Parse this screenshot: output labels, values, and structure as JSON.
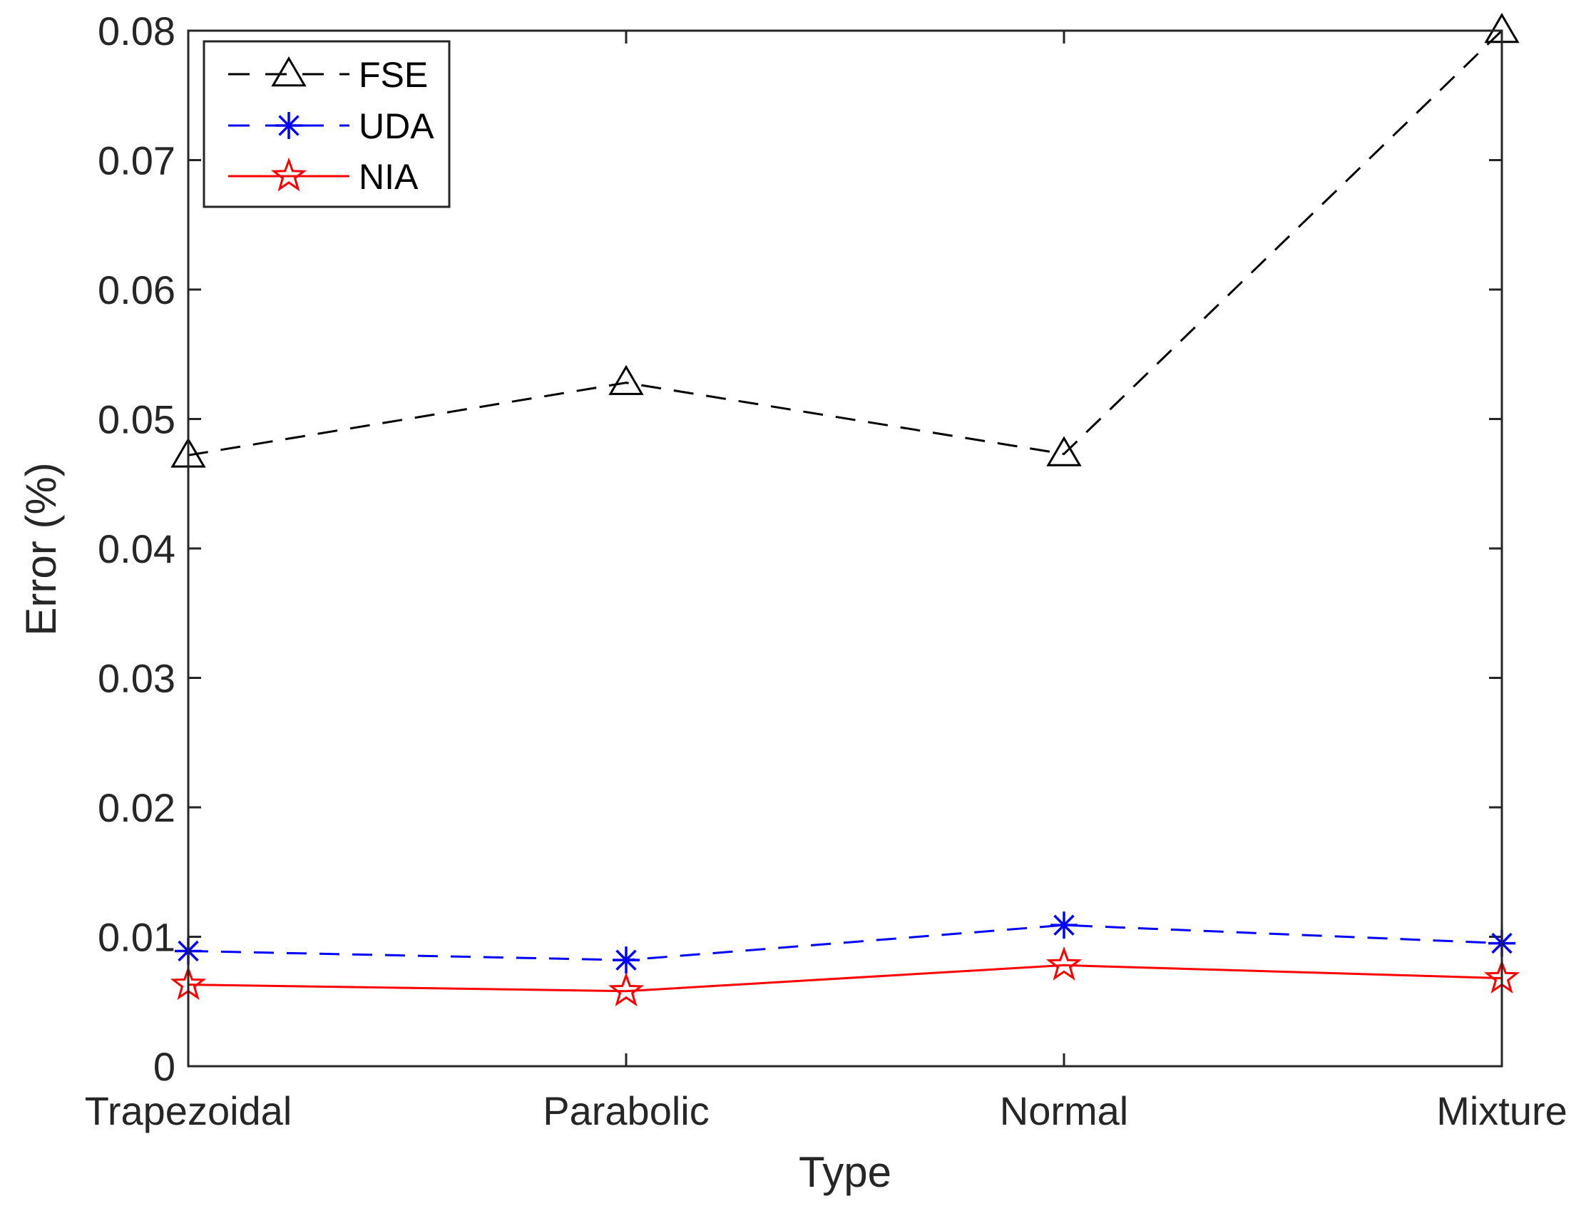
{
  "chart_data": {
    "type": "line",
    "title": "",
    "xlabel": "Type",
    "ylabel": "Error (%)",
    "categories": [
      "Trapezoidal",
      "Parabolic",
      "Normal",
      "Mixture"
    ],
    "ylim": [
      0,
      0.08
    ],
    "yticks": [
      "0",
      "0.01",
      "0.02",
      "0.03",
      "0.04",
      "0.05",
      "0.06",
      "0.07",
      "0.08"
    ],
    "grid": false,
    "legend_position": "top-left",
    "series": [
      {
        "name": "FSE",
        "values": [
          0.0472,
          0.0528,
          0.0473,
          0.08
        ],
        "color": "#000000",
        "dash": "dashed",
        "marker": "triangle"
      },
      {
        "name": "UDA",
        "values": [
          0.0089,
          0.0082,
          0.0109,
          0.0095
        ],
        "color": "#0000ff",
        "dash": "dashed",
        "marker": "asterisk"
      },
      {
        "name": "NIA",
        "values": [
          0.0063,
          0.0058,
          0.0078,
          0.0068
        ],
        "color": "#ff0000",
        "dash": "solid",
        "marker": "pentagram"
      }
    ]
  }
}
